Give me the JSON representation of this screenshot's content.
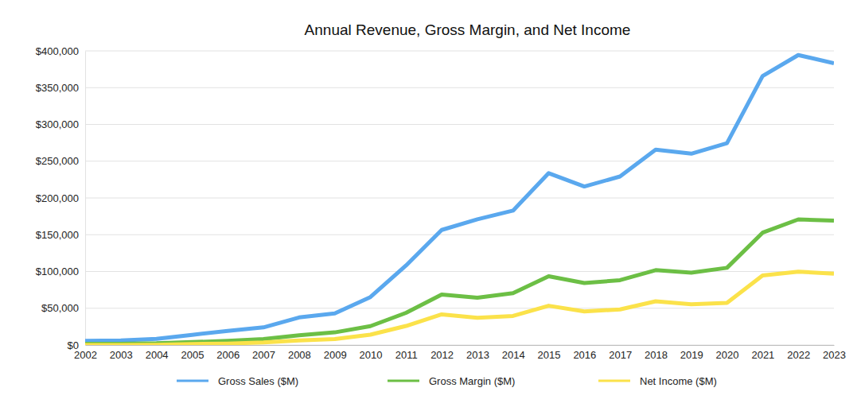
{
  "chart_data": {
    "type": "line",
    "title": "Annual Revenue, Gross Margin, and Net Income",
    "x": [
      2002,
      2003,
      2004,
      2005,
      2006,
      2007,
      2008,
      2009,
      2010,
      2011,
      2012,
      2013,
      2014,
      2015,
      2016,
      2017,
      2018,
      2019,
      2020,
      2021,
      2022,
      2023
    ],
    "series": [
      {
        "name": "Gross Sales ($M)",
        "color": "#5aa8ee",
        "values": [
          5700,
          6200,
          8300,
          13900,
          19300,
          24000,
          37500,
          42900,
          65200,
          108200,
          156500,
          170900,
          182800,
          233700,
          215600,
          229200,
          265600,
          260200,
          274500,
          365800,
          394300,
          383300
        ]
      },
      {
        "name": "Gross Margin ($M)",
        "color": "#6cbf45",
        "values": [
          1600,
          1700,
          2300,
          4000,
          5600,
          8200,
          13200,
          17200,
          25700,
          43800,
          68700,
          64300,
          70500,
          93600,
          84300,
          88200,
          101800,
          98400,
          105000,
          152800,
          170800,
          169100
        ]
      },
      {
        "name": "Net Income ($M)",
        "color": "#fbe24a",
        "values": [
          100,
          100,
          300,
          1300,
          2000,
          3500,
          6100,
          8200,
          14000,
          25900,
          41700,
          37000,
          39500,
          53400,
          45700,
          48400,
          59500,
          55300,
          57400,
          94700,
          99800,
          97000
        ]
      }
    ],
    "xlim": [
      2002,
      2023
    ],
    "xticks": [
      2002,
      2003,
      2004,
      2005,
      2006,
      2007,
      2008,
      2009,
      2010,
      2011,
      2012,
      2013,
      2014,
      2015,
      2016,
      2017,
      2018,
      2019,
      2020,
      2021,
      2022,
      2023
    ],
    "ylim": [
      0,
      400000
    ],
    "yticks": [
      {
        "value": 0,
        "label": "$0"
      },
      {
        "value": 50000,
        "label": "$50,000"
      },
      {
        "value": 100000,
        "label": "$100,000"
      },
      {
        "value": 150000,
        "label": "$150,000"
      },
      {
        "value": 200000,
        "label": "$200,000"
      },
      {
        "value": 250000,
        "label": "$250,000"
      },
      {
        "value": 300000,
        "label": "$300,000"
      },
      {
        "value": 350000,
        "label": "$350,000"
      },
      {
        "value": 400000,
        "label": "$400,000"
      }
    ],
    "grid": true,
    "legend": "bottom",
    "line_style": "solid"
  }
}
